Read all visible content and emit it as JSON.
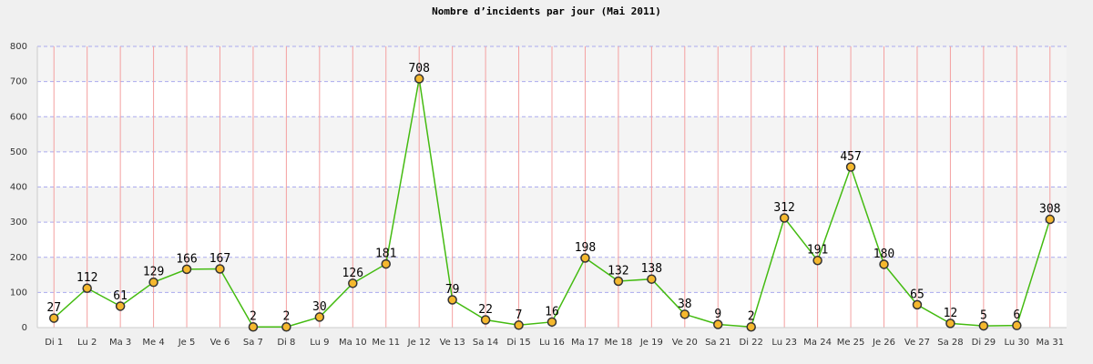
{
  "chart_data": {
    "type": "line",
    "title": "Nombre d’incidents par jour (Mai 2011)",
    "categories": [
      "Di 1",
      "Lu 2",
      "Ma 3",
      "Me 4",
      "Je 5",
      "Ve 6",
      "Sa 7",
      "Di 8",
      "Lu 9",
      "Ma 10",
      "Me 11",
      "Je 12",
      "Ve 13",
      "Sa 14",
      "Di 15",
      "Lu 16",
      "Ma 17",
      "Me 18",
      "Je 19",
      "Ve 20",
      "Sa 21",
      "Di 22",
      "Lu 23",
      "Ma 24",
      "Me 25",
      "Je 26",
      "Ve 27",
      "Sa 28",
      "Di 29",
      "Lu 30",
      "Ma 31"
    ],
    "values": [
      27,
      112,
      61,
      129,
      166,
      167,
      2,
      2,
      30,
      126,
      181,
      708,
      79,
      22,
      7,
      16,
      198,
      132,
      138,
      38,
      9,
      2,
      312,
      191,
      457,
      180,
      65,
      12,
      5,
      6,
      308
    ],
    "color": "#44bb11",
    "marker_color": "#f5b82e",
    "ylim": [
      0,
      800
    ],
    "yticks": [
      0,
      100,
      200,
      300,
      400,
      500,
      600,
      700,
      800
    ],
    "grid": true
  }
}
